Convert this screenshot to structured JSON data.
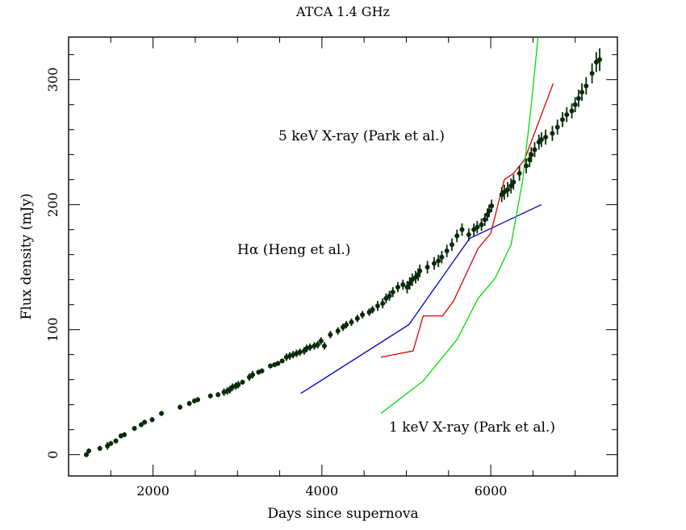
{
  "chart_data": {
    "type": "scatter",
    "title": "ATCA 1.4 GHz",
    "xlabel": "Days since supernova",
    "ylabel": "Flux density (mJy)",
    "xlim": [
      1000,
      7500
    ],
    "ylim": [
      -17,
      334
    ],
    "xticks": [
      2000,
      4000,
      6000
    ],
    "xtick_labels": [
      "2000",
      "4000",
      "6000"
    ],
    "yticks": [
      0,
      100,
      200,
      300
    ],
    "ytick_labels": [
      "0",
      "100",
      "200",
      "300"
    ],
    "grid": false,
    "colors": {
      "frame": "#000000",
      "points": "#0a2a0a",
      "halpha": "#0000cc",
      "xray5": "#dd0000",
      "xray1": "#00dd00"
    },
    "series": [
      {
        "kind": "points",
        "x": [
          1210,
          1240,
          1370,
          1460,
          1500,
          1560,
          1620,
          1660,
          1780,
          1860,
          1900,
          1990,
          2100,
          2320,
          2430,
          2490,
          2530,
          2680,
          2770,
          2840,
          2880,
          2910,
          2940,
          2980,
          3010,
          3060,
          3140,
          3180,
          3250,
          3290,
          3390,
          3440,
          3480,
          3530,
          3580,
          3620,
          3660,
          3700,
          3740,
          3790,
          3820,
          3860,
          3910,
          3950,
          3990,
          4030,
          4100,
          4190,
          4250,
          4290,
          4350,
          4420,
          4480,
          4560,
          4600,
          4660,
          4720,
          4760,
          4800,
          4840,
          4900,
          4960,
          5010,
          5040,
          5070,
          5110,
          5140,
          5160,
          5250,
          5330,
          5380,
          5420,
          5480,
          5540,
          5600,
          5660,
          5740,
          5800,
          5840,
          5890,
          5930,
          5960,
          5980,
          6010,
          6130,
          6160,
          6200,
          6240,
          6270,
          6340,
          6420,
          6460,
          6480,
          6520,
          6570,
          6600,
          6650,
          6730,
          6790,
          6850,
          6900,
          6960,
          7000,
          7040,
          7080,
          7130,
          7200,
          7250,
          7290
        ],
        "y": [
          0,
          3,
          5,
          7,
          9,
          11,
          15,
          16,
          21,
          24,
          26,
          28,
          33,
          38,
          41,
          43,
          44,
          47,
          48,
          50,
          51,
          52,
          54,
          55,
          56,
          58,
          62,
          64,
          66,
          67,
          71,
          72,
          73,
          75,
          78,
          79,
          80,
          81,
          82,
          83,
          85,
          86,
          87,
          88,
          91,
          87,
          96,
          99,
          102,
          104,
          106,
          109,
          112,
          114,
          116,
          119,
          121,
          125,
          127,
          130,
          134,
          136,
          134,
          137,
          140,
          142,
          144,
          147,
          150,
          153,
          155,
          158,
          163,
          168,
          175,
          180,
          176,
          180,
          182,
          184,
          188,
          192,
          195,
          199,
          208,
          210,
          212,
          215,
          218,
          225,
          231,
          236,
          240,
          244,
          250,
          252,
          254,
          257,
          262,
          268,
          272,
          275,
          280,
          285,
          290,
          295,
          305,
          314,
          316
        ],
        "err": [
          2,
          2,
          2,
          3,
          2,
          2,
          2,
          2,
          2,
          2,
          2,
          2,
          2,
          2,
          2,
          2,
          2,
          2,
          2,
          3,
          3,
          3,
          3,
          3,
          3,
          2,
          3,
          3,
          2,
          2,
          2,
          2,
          2,
          2,
          3,
          3,
          3,
          3,
          3,
          3,
          3,
          3,
          3,
          3,
          3,
          3,
          3,
          3,
          3,
          3,
          3,
          3,
          3,
          3,
          3,
          4,
          4,
          4,
          4,
          4,
          4,
          4,
          5,
          5,
          5,
          5,
          5,
          5,
          5,
          5,
          5,
          5,
          5,
          5,
          5,
          5,
          5,
          5,
          5,
          5,
          5,
          5,
          5,
          5,
          6,
          6,
          6,
          6,
          6,
          6,
          6,
          6,
          6,
          6,
          6,
          6,
          6,
          6,
          6,
          6,
          6,
          6,
          6,
          7,
          7,
          7,
          8,
          8,
          9
        ]
      },
      {
        "kind": "line",
        "name": "Hα (Heng et al.)",
        "x": [
          3750,
          5030,
          5750,
          6600
        ],
        "y": [
          49,
          104,
          173,
          200
        ]
      },
      {
        "kind": "line",
        "name": "5 keV X-ray (Park et al.)",
        "x": [
          4700,
          5080,
          5200,
          5430,
          5560,
          5850,
          6000,
          6160,
          6270,
          6400,
          6740
        ],
        "y": [
          78,
          83,
          111,
          111,
          123,
          165,
          177,
          220,
          225,
          236,
          297
        ]
      },
      {
        "kind": "line",
        "name": "1 keV X-ray (Park et al.)",
        "x": [
          4700,
          5200,
          5600,
          5850,
          6050,
          6240,
          6380,
          6480,
          6560
        ],
        "y": [
          33,
          59,
          92,
          125,
          141,
          168,
          220,
          280,
          334
        ]
      }
    ],
    "annotations": [
      {
        "text": "5 keV X-ray (Park et al.)",
        "series": 2
      },
      {
        "text": "Hα (Heng et al.)",
        "series": 1
      },
      {
        "text": "1 keV X-ray (Park et al.)",
        "series": 3
      }
    ]
  }
}
